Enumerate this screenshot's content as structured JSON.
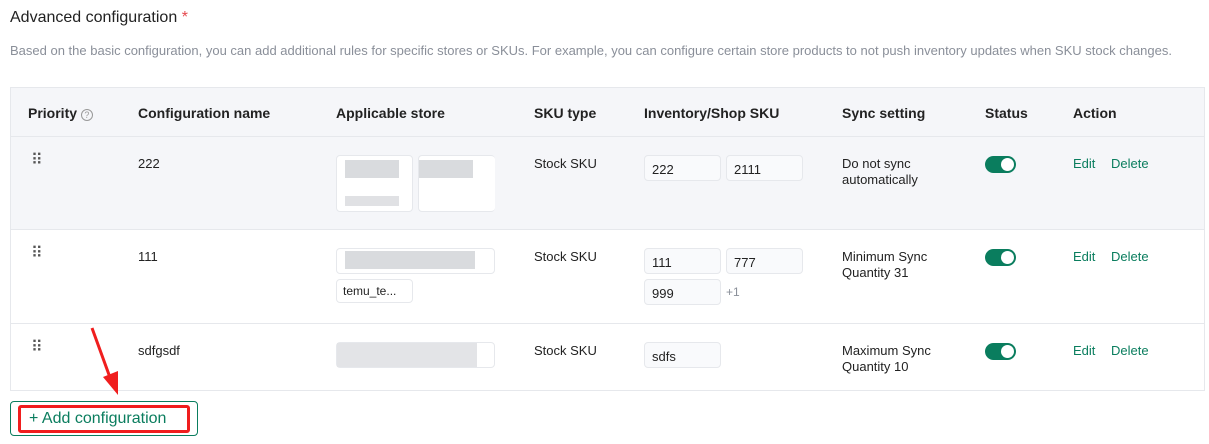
{
  "title": "Advanced configuration",
  "required_mark": "*",
  "description": "Based on the basic configuration, you can add additional rules for specific stores or SKUs. For example, you can configure certain store products to not push inventory updates when SKU stock changes.",
  "columns": {
    "priority": "Priority",
    "name": "Configuration name",
    "store": "Applicable store",
    "sku_type": "SKU type",
    "inventory": "Inventory/Shop SKU",
    "sync": "Sync setting",
    "status": "Status",
    "action": "Action"
  },
  "rows": [
    {
      "name": "222",
      "sku_type": "Stock SKU",
      "skus": [
        "222",
        "2111"
      ],
      "sync": "Do not sync automatically",
      "status": true,
      "edit": "Edit",
      "delete": "Delete"
    },
    {
      "name": "111",
      "sku_type": "Stock SKU",
      "store_visible": "temu_te...",
      "skus": [
        "111",
        "777",
        "999"
      ],
      "more": "+1",
      "sync": "Minimum Sync Quantity 31",
      "status": true,
      "edit": "Edit",
      "delete": "Delete"
    },
    {
      "name": "sdfgsdf",
      "sku_type": "Stock SKU",
      "skus": [
        "sdfs"
      ],
      "sync": "Maximum Sync Quantity 10",
      "status": true,
      "edit": "Edit",
      "delete": "Delete"
    }
  ],
  "add_button": {
    "icon": "plus-icon",
    "label": "Add configuration"
  },
  "colors": {
    "accent": "#0a7d5e",
    "annotation": "#f01e1e",
    "required": "#e5484d"
  }
}
